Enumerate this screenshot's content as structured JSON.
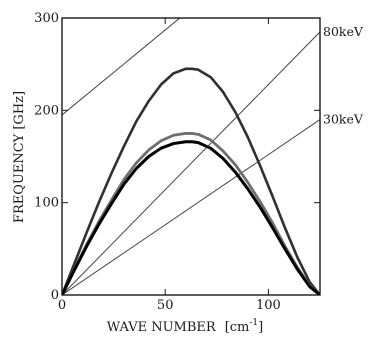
{
  "chart_data": {
    "type": "line",
    "title": "",
    "xlabel": "WAVE NUMBER",
    "xlabel_unit_base": "[cm",
    "xlabel_unit_exp": "-1",
    "xlabel_unit_close": "]",
    "ylabel": "FREQUENCY  [GHz]",
    "xlim": [
      0,
      125
    ],
    "ylim": [
      0,
      300
    ],
    "grid": false,
    "x_ticks": [
      0,
      50,
      100
    ],
    "y_ticks": [
      0,
      100,
      200,
      300
    ],
    "series": [
      {
        "color": "#303030",
        "width": 2.6,
        "x": [
          0,
          6,
          12,
          18,
          24,
          30,
          36,
          42,
          48,
          54,
          60,
          63,
          66,
          72,
          78,
          84,
          90,
          96,
          102,
          108,
          114,
          120,
          125
        ],
        "y": [
          0,
          34,
          68,
          101,
          132,
          161,
          188,
          210,
          228,
          240,
          245,
          245,
          244,
          236,
          220,
          198,
          171,
          140,
          107,
          73,
          41,
          14,
          0
        ]
      },
      {
        "color": "#6e6e6e",
        "width": 2.8,
        "x": [
          0,
          6,
          12,
          18,
          24,
          30,
          36,
          42,
          48,
          54,
          60,
          63,
          66,
          72,
          78,
          84,
          90,
          96,
          102,
          108,
          114,
          120,
          125
        ],
        "y": [
          0,
          28,
          55,
          80,
          103,
          125,
          143,
          157,
          167,
          173,
          175,
          175,
          174,
          168,
          156,
          141,
          122,
          101,
          78,
          53,
          30,
          10,
          0
        ]
      },
      {
        "color": "#000000",
        "width": 3.0,
        "x": [
          0,
          6,
          12,
          18,
          24,
          30,
          36,
          42,
          48,
          54,
          60,
          63,
          66,
          72,
          78,
          84,
          90,
          96,
          102,
          108,
          114,
          120,
          125
        ],
        "y": [
          0,
          27,
          53,
          77,
          99,
          120,
          137,
          150,
          159,
          164,
          166,
          166,
          165,
          159,
          148,
          133,
          115,
          95,
          73,
          50,
          28,
          9,
          0
        ]
      }
    ],
    "beam_lines": [
      {
        "label": "",
        "color": "#444444",
        "x": [
          0,
          125
        ],
        "y": [
          195,
          425
        ]
      },
      {
        "label": "80keV",
        "color": "#444444",
        "x": [
          0,
          125
        ],
        "y": [
          0,
          285
        ]
      },
      {
        "label": "30keV",
        "color": "#444444",
        "x": [
          0,
          125
        ],
        "y": [
          0,
          190
        ]
      }
    ]
  }
}
